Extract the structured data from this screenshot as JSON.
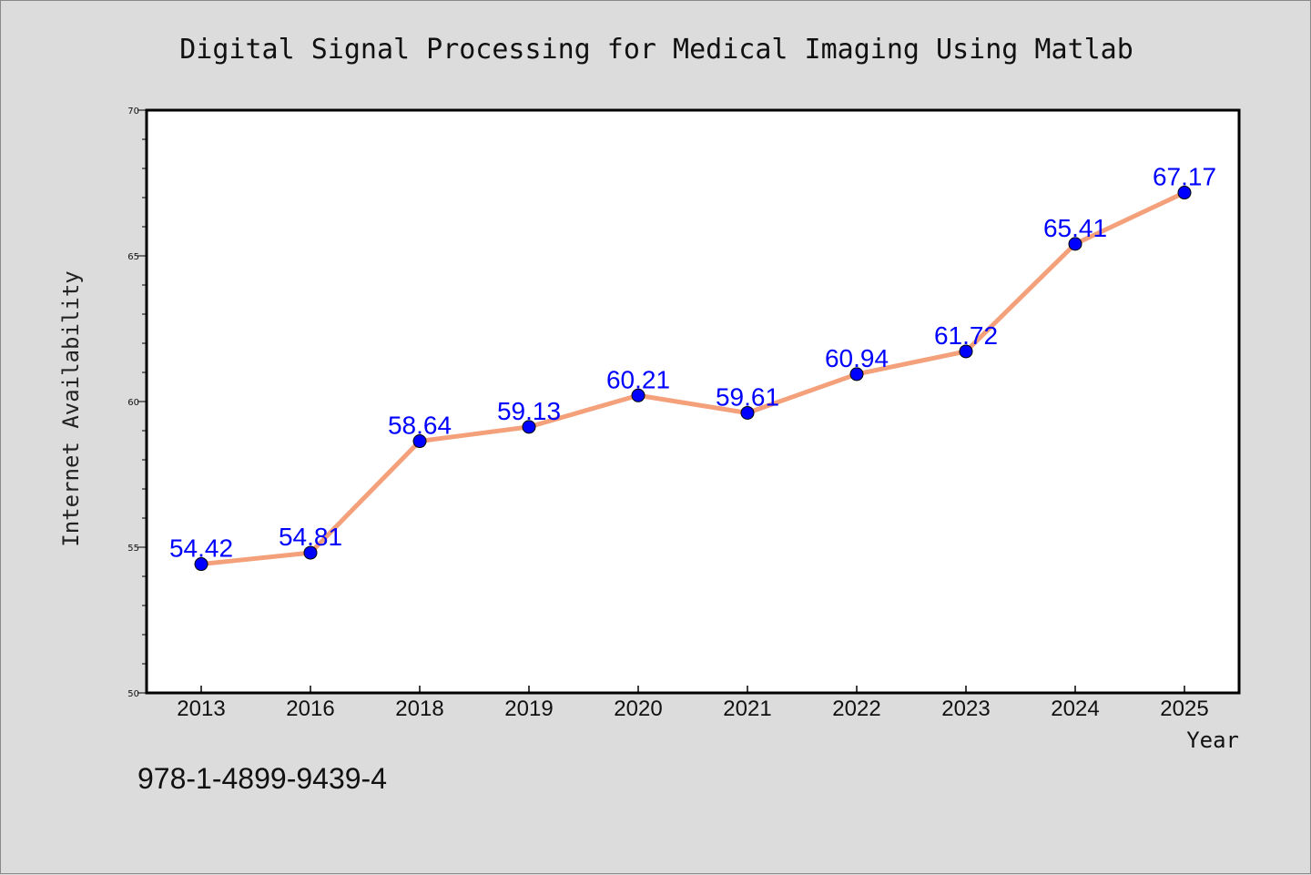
{
  "chart_data": {
    "type": "line",
    "title": "Digital Signal Processing for Medical Imaging Using Matlab",
    "xlabel": "Year",
    "ylabel": "Internet Availability",
    "categories": [
      "2013",
      "2016",
      "2018",
      "2019",
      "2020",
      "2021",
      "2022",
      "2023",
      "2024",
      "2025"
    ],
    "values": [
      54.42,
      54.81,
      58.64,
      59.13,
      60.21,
      59.61,
      60.94,
      61.72,
      65.41,
      67.17
    ],
    "data_labels": [
      "54.42",
      "54.81",
      "58.64",
      "59.13",
      "60.21",
      "59.61",
      "60.94",
      "61.72",
      "65.41",
      "67.17"
    ],
    "ylim": [
      50,
      70
    ],
    "yticks": [
      "50",
      "55",
      "60",
      "65",
      "70"
    ],
    "grid": false,
    "legend": "none",
    "colors": {
      "line": "#f4a07a",
      "marker": "#0000ff",
      "label": "#0000ff",
      "background": "#dcdcdc",
      "plot_area": "#ffffff"
    }
  },
  "footer": {
    "isbn": "978-1-4899-9439-4"
  }
}
